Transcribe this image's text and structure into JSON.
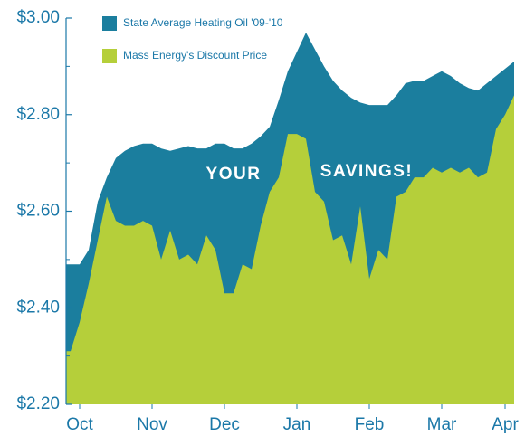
{
  "chart_data": {
    "type": "area",
    "categories": [
      null,
      "Oct",
      null,
      null,
      null,
      null,
      null,
      null,
      null,
      "Nov",
      null,
      null,
      null,
      null,
      null,
      null,
      null,
      "Dec",
      null,
      null,
      null,
      null,
      null,
      null,
      null,
      "Jan",
      null,
      null,
      null,
      null,
      null,
      null,
      null,
      "Feb",
      null,
      null,
      null,
      null,
      null,
      null,
      null,
      "Mar",
      null,
      null,
      null,
      null,
      null,
      null,
      "Apr",
      null
    ],
    "series": [
      {
        "name": "State Average Heating Oil '09-'10",
        "color": "#1b7e9e",
        "values": [
          2.49,
          2.49,
          2.52,
          2.62,
          2.67,
          2.71,
          2.725,
          2.735,
          2.74,
          2.74,
          2.73,
          2.725,
          2.73,
          2.735,
          2.73,
          2.73,
          2.74,
          2.74,
          2.73,
          2.73,
          2.74,
          2.755,
          2.775,
          2.83,
          2.89,
          2.93,
          2.97,
          2.935,
          2.9,
          2.87,
          2.85,
          2.835,
          2.825,
          2.82,
          2.82,
          2.82,
          2.84,
          2.865,
          2.87,
          2.87,
          2.88,
          2.89,
          2.88,
          2.865,
          2.855,
          2.85,
          2.865,
          2.88,
          2.895,
          2.91
        ]
      },
      {
        "name": "Mass Energy's Discount Price",
        "color": "#b5cf3a",
        "values": [
          2.31,
          2.37,
          2.45,
          2.54,
          2.63,
          2.58,
          2.57,
          2.57,
          2.58,
          2.57,
          2.5,
          2.56,
          2.5,
          2.51,
          2.49,
          2.55,
          2.52,
          2.43,
          2.43,
          2.49,
          2.48,
          2.57,
          2.64,
          2.67,
          2.76,
          2.76,
          2.75,
          2.64,
          2.62,
          2.54,
          2.55,
          2.49,
          2.61,
          2.46,
          2.52,
          2.5,
          2.63,
          2.64,
          2.67,
          2.67,
          2.69,
          2.68,
          2.69,
          2.68,
          2.69,
          2.67,
          2.68,
          2.77,
          2.8,
          2.84
        ]
      }
    ],
    "ylim": [
      2.2,
      3.0
    ],
    "yticks": [
      {
        "value": 2.2,
        "label": "$2.20"
      },
      {
        "value": 2.4,
        "label": "$2.40"
      },
      {
        "value": 2.6,
        "label": "$2.60"
      },
      {
        "value": 2.8,
        "label": "$2.80"
      },
      {
        "value": 3.0,
        "label": "$3.00"
      }
    ],
    "minor_yticks": [
      2.3,
      2.5,
      2.7,
      2.9
    ],
    "annotations": [
      "YOUR",
      "SAVINGS!"
    ],
    "legend": "top-left"
  }
}
